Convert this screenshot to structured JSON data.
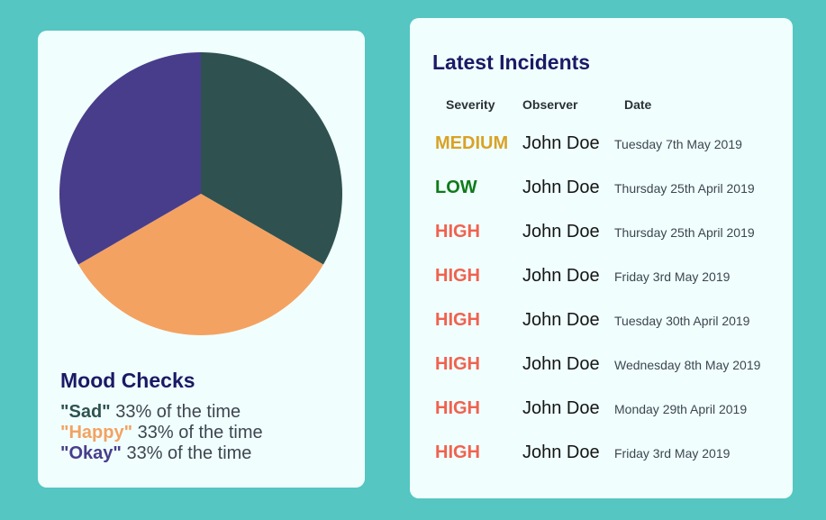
{
  "mood": {
    "title": "Mood Checks",
    "entries": [
      {
        "name": "\"Sad\"",
        "text": "33% of the time"
      },
      {
        "name": "\"Happy\"",
        "text": "33% of the time"
      },
      {
        "name": "\"Okay\"",
        "text": "33% of the time"
      }
    ]
  },
  "chart_data": {
    "type": "pie",
    "categories": [
      "Sad",
      "Happy",
      "Okay"
    ],
    "values": [
      33,
      33,
      33
    ],
    "colors": [
      "#2f5250",
      "#f4a261",
      "#483d8b"
    ],
    "title": ""
  },
  "incidents": {
    "title": "Latest Incidents",
    "headers": [
      "Severity",
      "Observer",
      "Date"
    ],
    "rows": [
      {
        "severity": "MEDIUM",
        "observer": "John Doe",
        "date": "Tuesday 7th May 2019"
      },
      {
        "severity": "LOW",
        "observer": "John Doe",
        "date": "Thursday 25th April 2019"
      },
      {
        "severity": "HIGH",
        "observer": "John Doe",
        "date": "Thursday 25th April 2019"
      },
      {
        "severity": "HIGH",
        "observer": "John Doe",
        "date": "Friday 3rd May 2019"
      },
      {
        "severity": "HIGH",
        "observer": "John Doe",
        "date": "Tuesday 30th April 2019"
      },
      {
        "severity": "HIGH",
        "observer": "John Doe",
        "date": "Wednesday 8th May 2019"
      },
      {
        "severity": "HIGH",
        "observer": "John Doe",
        "date": "Monday 29th April 2019"
      },
      {
        "severity": "HIGH",
        "observer": "John Doe",
        "date": "Friday 3rd May 2019"
      }
    ]
  },
  "colors": {
    "background": "#55c6c1",
    "card": "#f0fffe",
    "title": "#1a1a66",
    "severity": {
      "MEDIUM": "#d9a227",
      "LOW": "#0f7a1a",
      "HIGH": "#f0624f"
    }
  }
}
